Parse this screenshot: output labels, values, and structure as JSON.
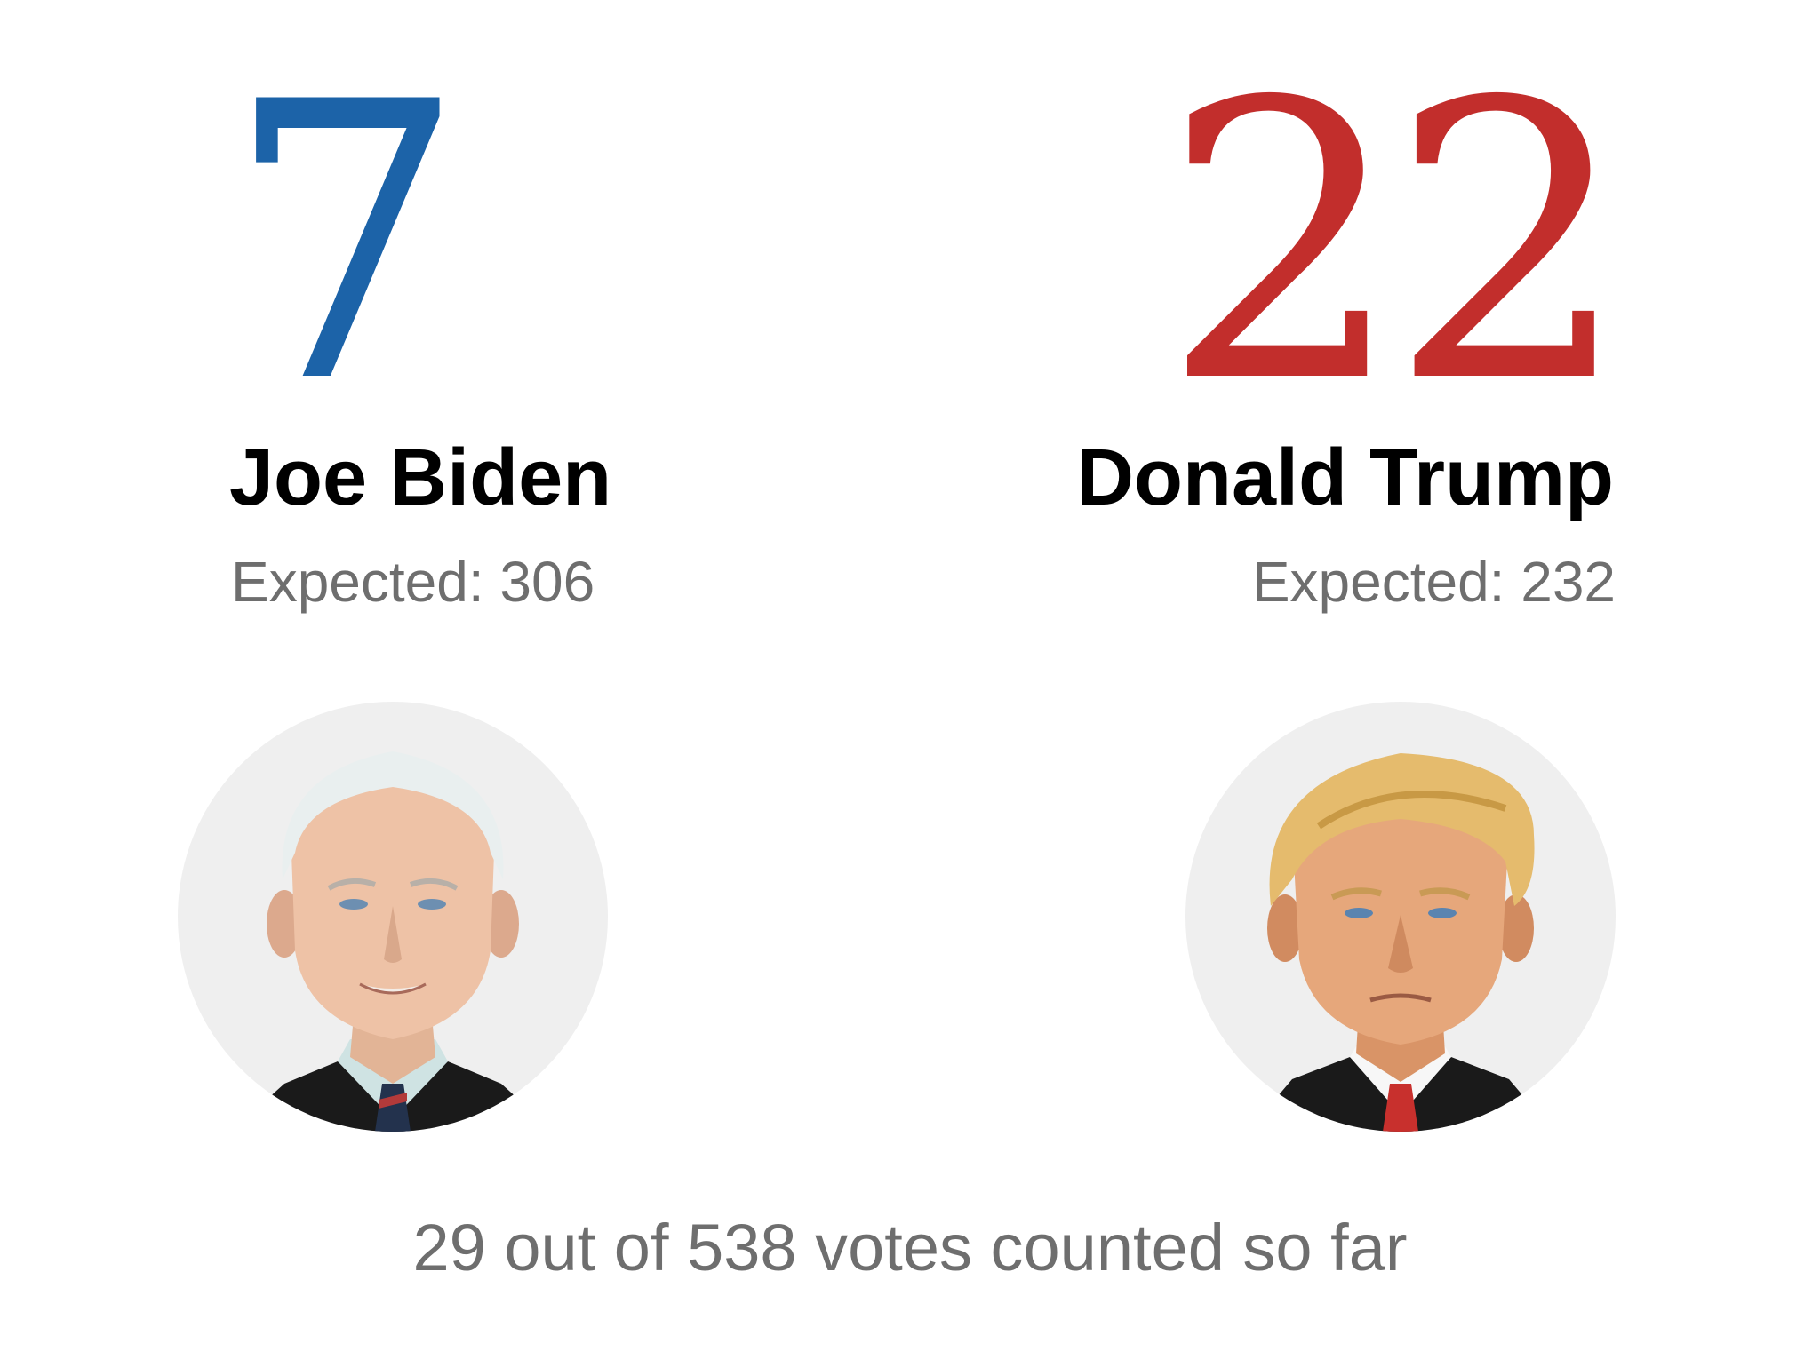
{
  "candidates": [
    {
      "name": "Joe Biden",
      "electoral_votes": "7",
      "expected_label": "Expected: 306",
      "color": "#1c63a8",
      "avatar_icon": "biden-portrait-icon"
    },
    {
      "name": "Donald Trump",
      "electoral_votes": "22",
      "expected_label": "Expected: 232",
      "color": "#c22e2c",
      "avatar_icon": "trump-portrait-icon"
    }
  ],
  "footer": {
    "text": "29 out of 538 votes counted so far"
  },
  "colors": {
    "label_gray": "#6e6e6e",
    "avatar_bg": "#efefef"
  }
}
